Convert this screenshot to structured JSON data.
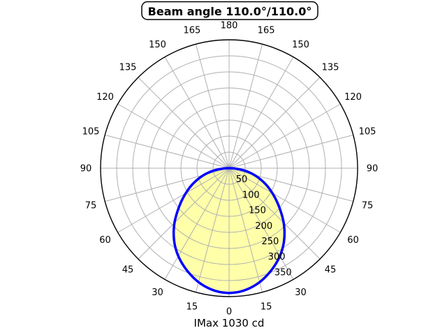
{
  "chart_data": {
    "type": "polar",
    "title": "Beam angle 110.0°/110.0°",
    "footer": "IMax 1030 cd",
    "imax_cd": 1030,
    "beam_angle_deg_c0": 110.0,
    "beam_angle_deg_c90": 110.0,
    "angle_ticks_deg": [
      0,
      15,
      30,
      45,
      60,
      75,
      90,
      105,
      120,
      135,
      150,
      165,
      180
    ],
    "angle_ticks_mirrored": true,
    "radial_ticks": [
      50,
      100,
      150,
      200,
      250,
      300,
      350
    ],
    "radial_axis_max": 400,
    "radial_label_angle_deg": 22.5,
    "grid_step_deg": 15,
    "curve": {
      "model": "relative luminous intensity vs angle, symmetric about 0°",
      "peak_fraction_of_axis": 0.972,
      "symmetric": true,
      "angles_deg": [
        0,
        5,
        10,
        15,
        20,
        25,
        30,
        35,
        40,
        45,
        50,
        55,
        60,
        65,
        70,
        75,
        80,
        85,
        90
      ],
      "relative_intensity": [
        1.0,
        0.993,
        0.974,
        0.945,
        0.906,
        0.862,
        0.813,
        0.756,
        0.69,
        0.618,
        0.54,
        0.468,
        0.4,
        0.337,
        0.272,
        0.208,
        0.142,
        0.07,
        0.0
      ]
    },
    "colors": {
      "curve": "#0000ff",
      "fill": "#ffffaa",
      "grid": "#b0b0b0",
      "outline": "#000000",
      "text": "#000000"
    }
  }
}
